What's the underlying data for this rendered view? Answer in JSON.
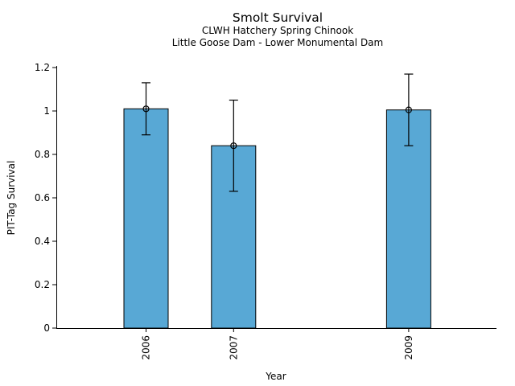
{
  "header": {
    "title": "Smolt Survival",
    "subtitle1": "CLWH Hatchery Spring Chinook",
    "subtitle2": "Little Goose Dam - Lower Monumental Dam"
  },
  "chart_data": {
    "type": "bar",
    "title": "Smolt Survival",
    "subtitles": [
      "CLWH Hatchery Spring Chinook",
      "Little Goose Dam - Lower Monumental Dam"
    ],
    "xlabel": "Year",
    "ylabel": "PIT-Tag Survival",
    "categories": [
      "2006",
      "2007",
      "2009"
    ],
    "x_numeric": [
      2006,
      2007,
      2009
    ],
    "values": [
      1.01,
      0.84,
      1.005
    ],
    "error_low": [
      0.89,
      0.63,
      0.84
    ],
    "error_high": [
      1.13,
      1.05,
      1.17
    ],
    "xlim": [
      2005,
      2010
    ],
    "ylim": [
      0,
      1.2
    ],
    "yticks": [
      0,
      0.2,
      0.4,
      0.6,
      0.8,
      1,
      1.2
    ],
    "ytick_labels": [
      "0",
      "0.2",
      "0.4",
      "0.6",
      "0.8",
      "1",
      "1.2"
    ],
    "xtick_label_rotation_deg": -90,
    "grid": false,
    "legend": "none",
    "marker": "open-circle",
    "colors": {
      "bar_fill": "#58A8D5",
      "bar_edge": "#000000",
      "error_bar": "#000000",
      "axis": "#000000",
      "text": "#000000",
      "background": "#ffffff"
    }
  }
}
